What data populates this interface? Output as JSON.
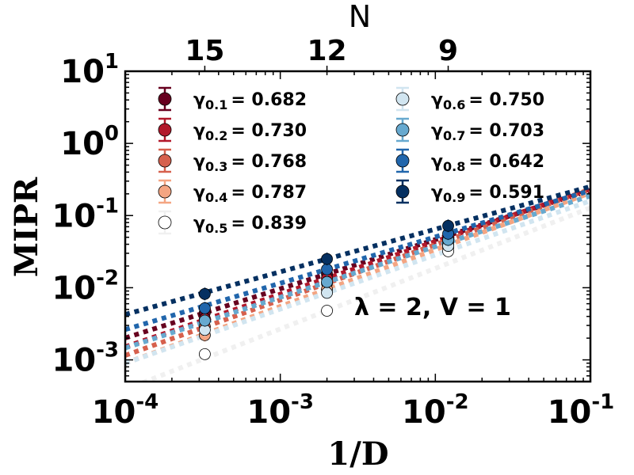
{
  "chart_data": {
    "type": "scatter",
    "xlabel": "1/D",
    "ylabel": "MIPR",
    "top_xlabel": "N",
    "xscale": "log",
    "yscale": "log",
    "xlim": [
      0.0001,
      0.1
    ],
    "ylim": [
      0.0005,
      10
    ],
    "x_ticks": [
      {
        "value": 0.0001,
        "base": "10",
        "exp": "-4"
      },
      {
        "value": 0.001,
        "base": "10",
        "exp": "-3"
      },
      {
        "value": 0.01,
        "base": "10",
        "exp": "-2"
      },
      {
        "value": 0.1,
        "base": "10",
        "exp": "-1"
      }
    ],
    "y_ticks": [
      {
        "value": 0.001,
        "base": "10",
        "exp": "-3"
      },
      {
        "value": 0.01,
        "base": "10",
        "exp": "-2"
      },
      {
        "value": 0.1,
        "base": "10",
        "exp": "-1"
      },
      {
        "value": 1,
        "base": "10",
        "exp": "0"
      },
      {
        "value": 10,
        "base": "10",
        "exp": "1"
      }
    ],
    "top_ticks": [
      {
        "label": "15",
        "x": 0.000326
      },
      {
        "label": "12",
        "x": 0.002
      },
      {
        "label": "9",
        "x": 0.0121
      }
    ],
    "x": [
      0.000326,
      0.002,
      0.0121
    ],
    "annotation": "λ = 2, V = 1",
    "legend_position": "upper-left",
    "series": [
      {
        "label_sym": "γ",
        "label_sub": "0.1",
        "label_val": "= 0.682",
        "gamma": 0.682,
        "color": "#67001f",
        "values": [
          0.0045,
          0.0155,
          0.048
        ]
      },
      {
        "label_sym": "γ",
        "label_sub": "0.2",
        "label_val": "= 0.730",
        "gamma": 0.73,
        "color": "#b2182b",
        "values": [
          0.0037,
          0.0135,
          0.044
        ]
      },
      {
        "label_sym": "γ",
        "label_sub": "0.3",
        "label_val": "= 0.768",
        "gamma": 0.768,
        "color": "#d6604d",
        "values": [
          0.0029,
          0.0115,
          0.04
        ]
      },
      {
        "label_sym": "γ",
        "label_sub": "0.4",
        "label_val": "= 0.787",
        "gamma": 0.787,
        "color": "#f4a582",
        "values": [
          0.0022,
          0.0095,
          0.036
        ]
      },
      {
        "label_sym": "γ",
        "label_sub": "0.5",
        "label_val": "= 0.839",
        "gamma": 0.839,
        "color": "#ffffff",
        "line_color": "#f0f0f0",
        "values": [
          0.0012,
          0.0048,
          0.032
        ]
      },
      {
        "label_sym": "γ",
        "label_sub": "0.6",
        "label_val": "= 0.750",
        "gamma": 0.75,
        "color": "#d1e5f0",
        "values": [
          0.0026,
          0.0085,
          0.038
        ]
      },
      {
        "label_sym": "γ",
        "label_sub": "0.7",
        "label_val": "= 0.703",
        "gamma": 0.703,
        "color": "#67a9cf",
        "values": [
          0.0035,
          0.012,
          0.046
        ]
      },
      {
        "label_sym": "γ",
        "label_sub": "0.8",
        "label_val": "= 0.642",
        "gamma": 0.642,
        "color": "#2166ac",
        "values": [
          0.0052,
          0.018,
          0.056
        ]
      },
      {
        "label_sym": "γ",
        "label_sub": "0.9",
        "label_val": "= 0.591",
        "gamma": 0.591,
        "color": "#053061",
        "values": [
          0.0082,
          0.025,
          0.072
        ]
      }
    ]
  }
}
